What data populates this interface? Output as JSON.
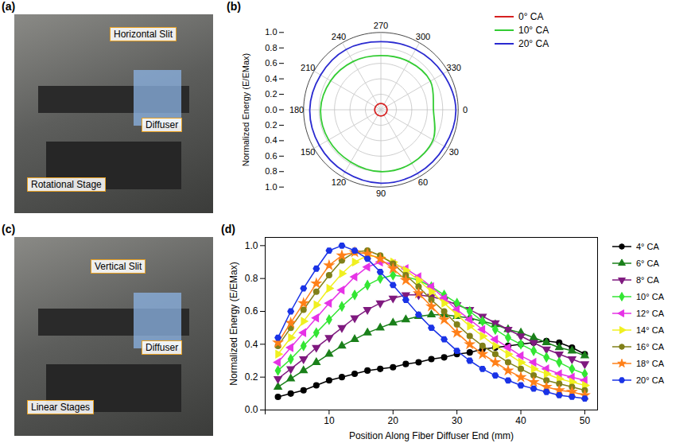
{
  "chart_data": [
    {
      "panel": "(b)",
      "type": "polar",
      "ylabel": "Normalized Energy (E/EMax)",
      "x": [
        0,
        30,
        60,
        90,
        120,
        150,
        180,
        210,
        240,
        270,
        300,
        330
      ],
      "xticks": [
        0,
        30,
        60,
        90,
        120,
        150,
        180,
        210,
        240,
        270,
        300,
        330
      ],
      "ylim": [
        0,
        1
      ],
      "yticks": [
        {
          "value": 0,
          "label": "0.0"
        },
        {
          "value": 0.2,
          "label": "0.2"
        },
        {
          "value": 0.4,
          "label": "0.4"
        },
        {
          "value": 0.6,
          "label": "0.6"
        },
        {
          "value": 0.8,
          "label": "0.8"
        },
        {
          "value": 1,
          "label": "1.0"
        }
      ],
      "grid": true,
      "legend": "top-right",
      "series": [
        {
          "name": "0° CA",
          "color": "#d62020",
          "values": [
            0.08,
            0.08,
            0.08,
            0.08,
            0.08,
            0.08,
            0.08,
            0.08,
            0.08,
            0.08,
            0.08,
            0.08
          ]
        },
        {
          "name": "10° CA",
          "color": "#33cc33",
          "values": [
            0.68,
            0.78,
            0.8,
            0.8,
            0.78,
            0.78,
            0.78,
            0.75,
            0.72,
            0.7,
            0.72,
            0.74
          ]
        },
        {
          "name": "20° CA",
          "color": "#2a2ad0",
          "values": [
            0.97,
            0.95,
            0.95,
            0.95,
            0.93,
            0.92,
            0.92,
            0.9,
            0.9,
            0.88,
            0.9,
            0.93
          ]
        }
      ]
    },
    {
      "panel": "(d)",
      "type": "line",
      "xlabel": "Position Along Fiber Diffuser End (mm)",
      "ylabel": "Normalized Energy (E/EMax)",
      "x": [
        2,
        4,
        6,
        8,
        10,
        12,
        14,
        16,
        18,
        20,
        22,
        24,
        26,
        28,
        30,
        32,
        34,
        36,
        38,
        40,
        42,
        44,
        46,
        48,
        50
      ],
      "xlim": [
        0,
        52
      ],
      "xticks": [
        0,
        10,
        20,
        30,
        40,
        50
      ],
      "ylim": [
        0,
        1.05
      ],
      "yticks": [
        {
          "value": 0,
          "label": "0.0"
        },
        {
          "value": 0.2,
          "label": "0.2"
        },
        {
          "value": 0.4,
          "label": "0.4"
        },
        {
          "value": 0.6,
          "label": "0.6"
        },
        {
          "value": 0.8,
          "label": "0.8"
        },
        {
          "value": 1,
          "label": "1.0"
        }
      ],
      "grid": false,
      "legend": "right",
      "series": [
        {
          "name": "4° CA",
          "color": "#000000",
          "marker": "circle",
          "values": [
            0.08,
            0.1,
            0.12,
            0.15,
            0.18,
            0.2,
            0.22,
            0.24,
            0.25,
            0.26,
            0.28,
            0.29,
            0.31,
            0.32,
            0.34,
            0.35,
            0.37,
            0.38,
            0.39,
            0.4,
            0.41,
            0.42,
            0.41,
            0.38,
            0.34
          ]
        },
        {
          "name": "6° CA",
          "color": "#1a801a",
          "marker": "triangle",
          "values": [
            0.14,
            0.19,
            0.24,
            0.29,
            0.34,
            0.39,
            0.43,
            0.47,
            0.5,
            0.53,
            0.55,
            0.57,
            0.58,
            0.58,
            0.57,
            0.56,
            0.54,
            0.52,
            0.49,
            0.47,
            0.44,
            0.41,
            0.38,
            0.36,
            0.33
          ]
        },
        {
          "name": "8° CA",
          "color": "#7f1a7f",
          "marker": "triangle-down",
          "values": [
            0.19,
            0.25,
            0.31,
            0.38,
            0.44,
            0.5,
            0.56,
            0.61,
            0.65,
            0.68,
            0.7,
            0.7,
            0.69,
            0.67,
            0.64,
            0.61,
            0.57,
            0.53,
            0.49,
            0.45,
            0.41,
            0.37,
            0.34,
            0.31,
            0.28
          ]
        },
        {
          "name": "10° CA",
          "color": "#33e633",
          "marker": "diamond",
          "values": [
            0.24,
            0.31,
            0.39,
            0.47,
            0.55,
            0.63,
            0.7,
            0.76,
            0.8,
            0.82,
            0.81,
            0.79,
            0.75,
            0.7,
            0.65,
            0.6,
            0.54,
            0.49,
            0.44,
            0.4,
            0.36,
            0.32,
            0.29,
            0.25,
            0.22
          ]
        },
        {
          "name": "12° CA",
          "color": "#e633e6",
          "marker": "triangle-left",
          "values": [
            0.29,
            0.38,
            0.47,
            0.56,
            0.65,
            0.73,
            0.81,
            0.87,
            0.9,
            0.89,
            0.86,
            0.81,
            0.75,
            0.68,
            0.61,
            0.55,
            0.49,
            0.43,
            0.38,
            0.33,
            0.29,
            0.25,
            0.22,
            0.2,
            0.18
          ]
        },
        {
          "name": "14° CA",
          "color": "#f0f020",
          "marker": "triangle-right",
          "values": [
            0.34,
            0.44,
            0.54,
            0.64,
            0.74,
            0.83,
            0.9,
            0.94,
            0.93,
            0.9,
            0.85,
            0.79,
            0.72,
            0.65,
            0.58,
            0.51,
            0.45,
            0.39,
            0.34,
            0.29,
            0.25,
            0.22,
            0.19,
            0.17,
            0.15
          ]
        },
        {
          "name": "16° CA",
          "color": "#808019",
          "marker": "circle",
          "values": [
            0.39,
            0.5,
            0.61,
            0.72,
            0.82,
            0.91,
            0.96,
            0.97,
            0.94,
            0.89,
            0.82,
            0.75,
            0.67,
            0.6,
            0.52,
            0.45,
            0.39,
            0.34,
            0.29,
            0.25,
            0.21,
            0.18,
            0.16,
            0.14,
            0.12
          ]
        },
        {
          "name": "18° CA",
          "color": "#ff8019",
          "marker": "star",
          "values": [
            0.41,
            0.53,
            0.65,
            0.77,
            0.88,
            0.94,
            0.96,
            0.95,
            0.92,
            0.86,
            0.79,
            0.71,
            0.63,
            0.55,
            0.47,
            0.4,
            0.34,
            0.29,
            0.24,
            0.2,
            0.17,
            0.14,
            0.12,
            0.11,
            0.09
          ]
        },
        {
          "name": "20° CA",
          "color": "#1a33e6",
          "marker": "hexagon",
          "values": [
            0.44,
            0.6,
            0.74,
            0.86,
            0.97,
            1.0,
            0.97,
            0.92,
            0.84,
            0.76,
            0.67,
            0.58,
            0.5,
            0.43,
            0.36,
            0.3,
            0.25,
            0.21,
            0.18,
            0.15,
            0.13,
            0.11,
            0.09,
            0.08,
            0.07
          ]
        }
      ]
    }
  ],
  "photos": [
    {
      "panel": "(a)",
      "labels": [
        "Horizontal Slit",
        "Diffuser",
        "Rotational Stage"
      ]
    },
    {
      "panel": "(c)",
      "labels": [
        "Vertical Slit",
        "Diffuser",
        "Linear Stages"
      ]
    }
  ]
}
